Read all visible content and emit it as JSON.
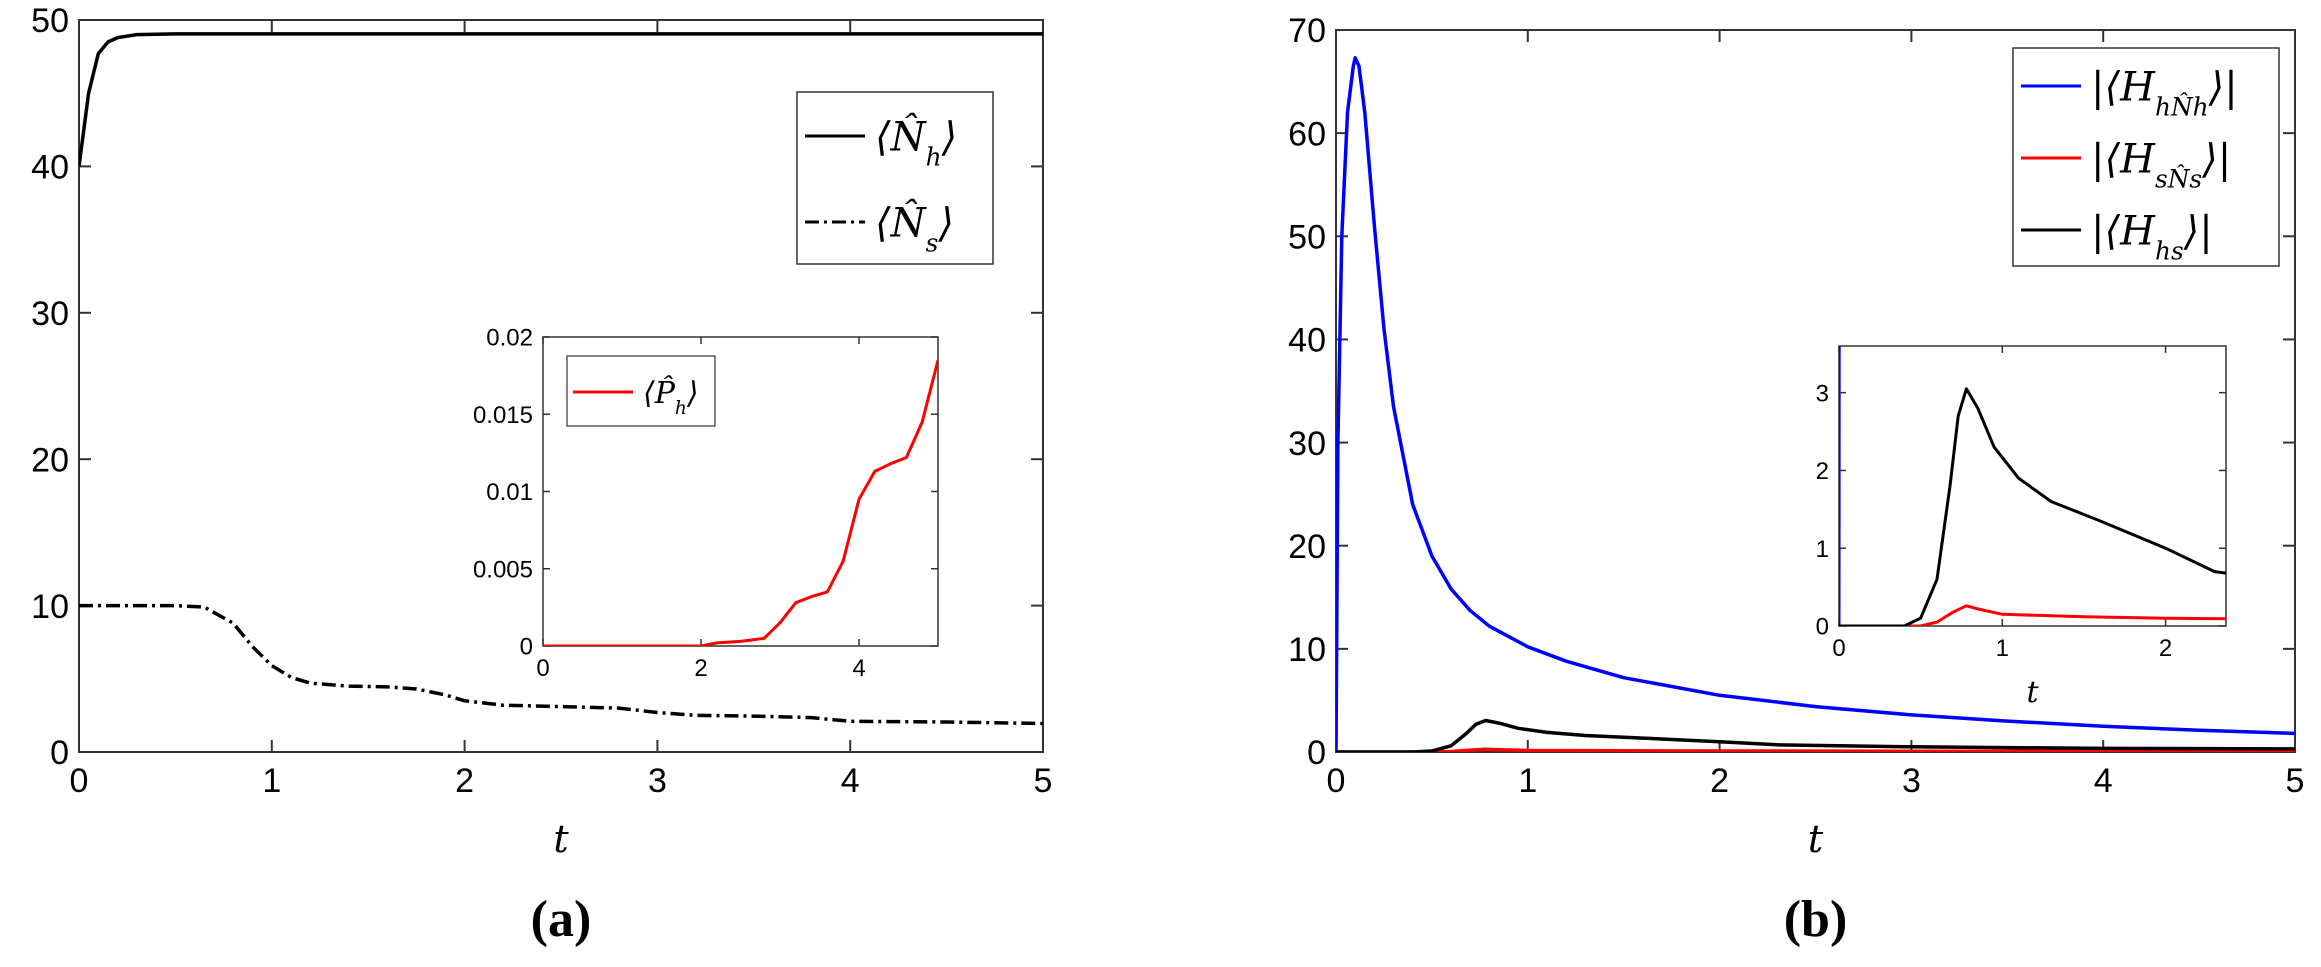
{
  "chart_data": [
    {
      "panel_label": "(a)",
      "type": "line",
      "xlabel": "t",
      "ylabel": "",
      "xlim": [
        0,
        5
      ],
      "ylim": [
        0,
        50
      ],
      "xticks": [
        0,
        1,
        2,
        3,
        4,
        5
      ],
      "yticks": [
        0,
        10,
        20,
        30,
        40,
        50
      ],
      "grid": false,
      "legend_position": "top-right",
      "series": [
        {
          "name": "⟨N̂_h⟩",
          "color": "#000000",
          "dash": "solid",
          "points": [
            [
              0,
              40
            ],
            [
              0.05,
              45
            ],
            [
              0.1,
              47.7
            ],
            [
              0.15,
              48.5
            ],
            [
              0.2,
              48.8
            ],
            [
              0.3,
              49.0
            ],
            [
              0.5,
              49.05
            ],
            [
              1,
              49.05
            ],
            [
              2,
              49.05
            ],
            [
              3,
              49.05
            ],
            [
              4,
              49.05
            ],
            [
              5,
              49.05
            ]
          ]
        },
        {
          "name": "⟨N̂_s⟩",
          "color": "#000000",
          "dash": "dashdot",
          "points": [
            [
              0,
              10
            ],
            [
              0.5,
              10
            ],
            [
              0.65,
              9.9
            ],
            [
              0.8,
              8.8
            ],
            [
              0.9,
              7.2
            ],
            [
              1,
              5.9
            ],
            [
              1.1,
              5.1
            ],
            [
              1.2,
              4.7
            ],
            [
              1.4,
              4.5
            ],
            [
              1.6,
              4.45
            ],
            [
              1.75,
              4.3
            ],
            [
              1.9,
              3.9
            ],
            [
              2,
              3.5
            ],
            [
              2.2,
              3.2
            ],
            [
              2.5,
              3.1
            ],
            [
              2.8,
              3.0
            ],
            [
              3,
              2.7
            ],
            [
              3.2,
              2.5
            ],
            [
              3.5,
              2.45
            ],
            [
              3.8,
              2.35
            ],
            [
              4,
              2.1
            ],
            [
              4.5,
              2.05
            ],
            [
              5,
              1.95
            ]
          ]
        }
      ],
      "inset": {
        "type": "line",
        "xlim": [
          0,
          5
        ],
        "ylim": [
          0,
          0.02
        ],
        "xticks": [
          0,
          2,
          4
        ],
        "yticks": [
          0,
          0.005,
          0.01,
          0.015,
          0.02
        ],
        "ytick_labels": [
          "0",
          "0.005",
          "0.01",
          "0.015",
          "0.02"
        ],
        "legend_position": "top-left",
        "series": [
          {
            "name": "⟨P̂_h⟩",
            "color": "#ff0000",
            "dash": "solid",
            "points": [
              [
                0,
                0
              ],
              [
                2,
                0
              ],
              [
                2.2,
                0.0002
              ],
              [
                2.5,
                0.0003
              ],
              [
                2.8,
                0.0005
              ],
              [
                3,
                0.0015
              ],
              [
                3.2,
                0.0028
              ],
              [
                3.4,
                0.0032
              ],
              [
                3.6,
                0.0035
              ],
              [
                3.8,
                0.0055
              ],
              [
                4,
                0.0095
              ],
              [
                4.2,
                0.0113
              ],
              [
                4.4,
                0.0118
              ],
              [
                4.6,
                0.0122
              ],
              [
                4.8,
                0.0145
              ],
              [
                5,
                0.0185
              ]
            ]
          }
        ]
      }
    },
    {
      "panel_label": "(b)",
      "type": "line",
      "xlabel": "t",
      "ylabel": "",
      "xlim": [
        0,
        5
      ],
      "ylim": [
        0,
        70
      ],
      "xticks": [
        0,
        1,
        2,
        3,
        4,
        5
      ],
      "yticks": [
        0,
        10,
        20,
        30,
        40,
        50,
        60,
        70
      ],
      "grid": false,
      "legend_position": "top-right",
      "series": [
        {
          "name": "|⟨H_{hN̂_h}⟩|",
          "color": "#0000ff",
          "dash": "solid",
          "points": [
            [
              0,
              0
            ],
            [
              0.01,
              30
            ],
            [
              0.03,
              50
            ],
            [
              0.06,
              62
            ],
            [
              0.09,
              66.5
            ],
            [
              0.1,
              67.3
            ],
            [
              0.12,
              66.5
            ],
            [
              0.15,
              62
            ],
            [
              0.2,
              51
            ],
            [
              0.25,
              41
            ],
            [
              0.3,
              33.5
            ],
            [
              0.4,
              24
            ],
            [
              0.5,
              19
            ],
            [
              0.6,
              15.8
            ],
            [
              0.7,
              13.7
            ],
            [
              0.8,
              12.2
            ],
            [
              1,
              10.2
            ],
            [
              1.2,
              8.8
            ],
            [
              1.5,
              7.2
            ],
            [
              2,
              5.5
            ],
            [
              2.5,
              4.4
            ],
            [
              3,
              3.6
            ],
            [
              3.5,
              3.0
            ],
            [
              4,
              2.5
            ],
            [
              4.5,
              2.1
            ],
            [
              5,
              1.8
            ]
          ]
        },
        {
          "name": "|⟨H_{sN̂_s}⟩|",
          "color": "#ff0000",
          "dash": "solid",
          "points": [
            [
              0,
              0
            ],
            [
              0.5,
              0
            ],
            [
              0.6,
              0.05
            ],
            [
              0.7,
              0.18
            ],
            [
              0.78,
              0.26
            ],
            [
              0.85,
              0.22
            ],
            [
              1,
              0.15
            ],
            [
              1.5,
              0.12
            ],
            [
              2,
              0.1
            ],
            [
              3,
              0.08
            ],
            [
              4,
              0.07
            ],
            [
              5,
              0.06
            ]
          ]
        },
        {
          "name": "|⟨H_{hs}⟩|",
          "color": "#000000",
          "dash": "solid",
          "points": [
            [
              0,
              0
            ],
            [
              0.4,
              0
            ],
            [
              0.5,
              0.1
            ],
            [
              0.6,
              0.6
            ],
            [
              0.68,
              1.8
            ],
            [
              0.73,
              2.7
            ],
            [
              0.78,
              3.05
            ],
            [
              0.85,
              2.8
            ],
            [
              0.95,
              2.3
            ],
            [
              1.1,
              1.9
            ],
            [
              1.3,
              1.6
            ],
            [
              1.6,
              1.35
            ],
            [
              2,
              1.0
            ],
            [
              2.3,
              0.7
            ],
            [
              3,
              0.5
            ],
            [
              4,
              0.35
            ],
            [
              5,
              0.3
            ]
          ]
        }
      ],
      "inset": {
        "type": "line",
        "xlabel": "t",
        "xlim": [
          0,
          2.37
        ],
        "ylim": [
          0,
          3.6
        ],
        "xticks": [
          0,
          1,
          2
        ],
        "yticks": [
          0,
          1,
          2,
          3
        ],
        "series_refs": [
          "|⟨H_{hN̂_h}⟩|",
          "|⟨H_{sN̂_s}⟩|",
          "|⟨H_{hs}⟩|"
        ]
      }
    }
  ]
}
